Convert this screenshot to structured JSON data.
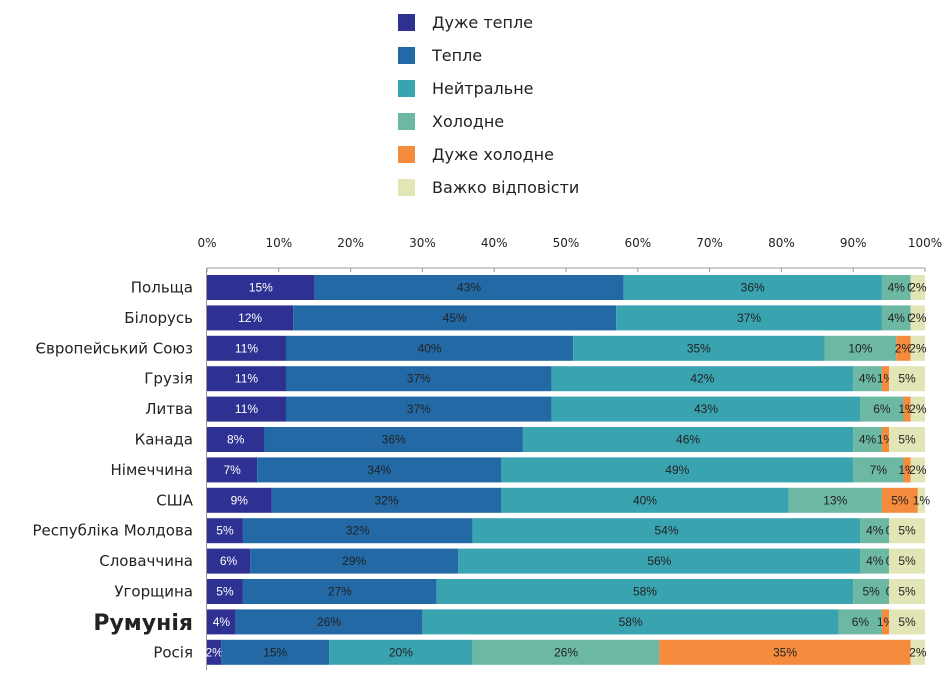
{
  "chart_data": {
    "type": "bar",
    "orientation": "horizontal",
    "stacked": true,
    "legend_position": "top",
    "grid": false,
    "xlim": [
      0,
      100
    ],
    "x_ticks": [
      "0%",
      "10%",
      "20%",
      "30%",
      "40%",
      "50%",
      "60%",
      "70%",
      "80%",
      "90%",
      "100%"
    ],
    "categories": [
      "Польща",
      "Білорусь",
      "Європейський Союз",
      "Грузія",
      "Литва",
      "Канада",
      "Німеччина",
      "США",
      "Республіка Молдова",
      "Словаччина",
      "Угорщина",
      "Румунія",
      "Росія"
    ],
    "highlighted_category": "Румунія",
    "series": [
      {
        "name": "Дуже тепле",
        "color": "#2e3192",
        "values": [
          15,
          12,
          11,
          11,
          11,
          8,
          7,
          9,
          5,
          6,
          5,
          4,
          2
        ],
        "labels": [
          "15%",
          "12%",
          "11%",
          "11%",
          "11%",
          "8%",
          "7%",
          "9%",
          "5%",
          "6%",
          "5%",
          "4%",
          "2%"
        ]
      },
      {
        "name": "Тепле",
        "color": "#2369a6",
        "values": [
          43,
          45,
          40,
          37,
          37,
          36,
          34,
          32,
          32,
          29,
          27,
          26,
          15
        ],
        "labels": [
          "43%",
          "45%",
          "40%",
          "37%",
          "37%",
          "36%",
          "34%",
          "32%",
          "32%",
          "29%",
          "27%",
          "26%",
          "15%"
        ]
      },
      {
        "name": "Нейтральне",
        "color": "#3aa3b0",
        "values": [
          36,
          37,
          35,
          42,
          43,
          46,
          49,
          40,
          54,
          56,
          58,
          58,
          20
        ],
        "labels": [
          "36%",
          "37%",
          "35%",
          "42%",
          "43%",
          "46%",
          "49%",
          "40%",
          "54%",
          "56%",
          "58%",
          "58%",
          "20%"
        ]
      },
      {
        "name": "Холодне",
        "color": "#6db8a3",
        "values": [
          4,
          4,
          10,
          4,
          6,
          4,
          7,
          13,
          4,
          4,
          5,
          6,
          26
        ],
        "labels": [
          "4%",
          "4%",
          "10%",
          "4%",
          "6%",
          "4%",
          "7%",
          "13%",
          "4%",
          "4%",
          "5%",
          "6%",
          "26%"
        ]
      },
      {
        "name": "Дуже холодне",
        "color": "#f58b3c",
        "values": [
          0,
          0,
          2,
          1,
          1,
          1,
          1,
          5,
          0,
          0,
          0,
          1,
          35
        ],
        "labels": [
          "0",
          "0",
          "2%",
          "1%",
          "1%",
          "1%",
          "1%",
          "5%",
          "0",
          "0",
          "0",
          "1%",
          "35%"
        ]
      },
      {
        "name": "Важко відповісти",
        "color": "#e2e5b5",
        "values": [
          2,
          2,
          2,
          5,
          2,
          5,
          2,
          1,
          5,
          5,
          5,
          5,
          2
        ],
        "labels": [
          "2%",
          "2%",
          "2%",
          "5%",
          "2%",
          "5%",
          "2%",
          "1%",
          "5%",
          "5%",
          "5%",
          "5%",
          "2%"
        ]
      }
    ]
  }
}
